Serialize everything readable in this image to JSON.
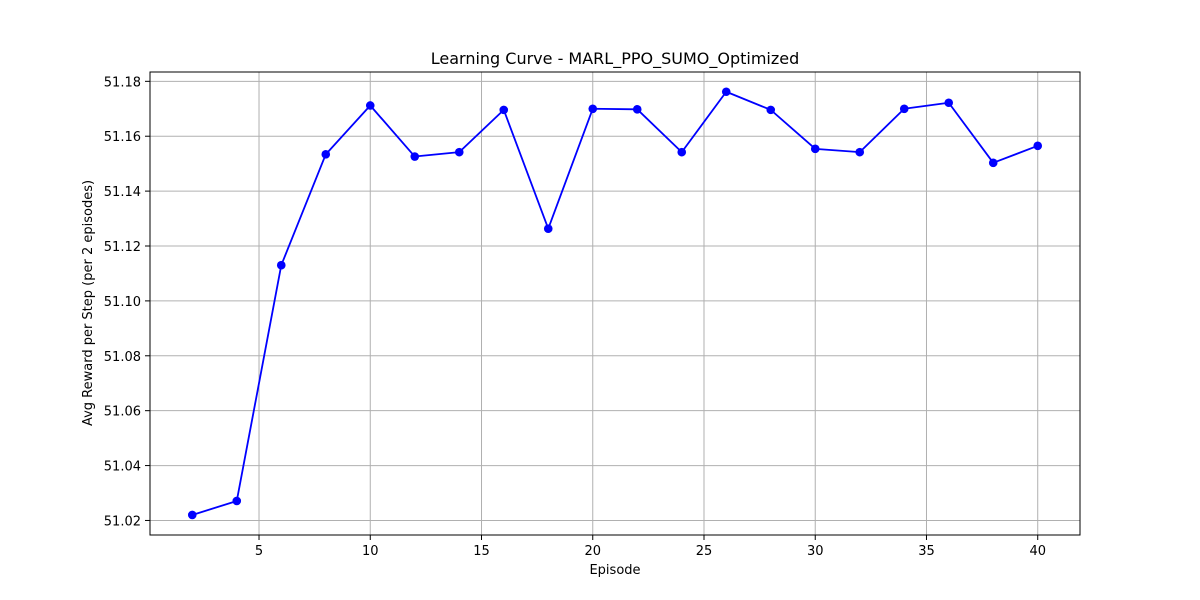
{
  "chart_data": {
    "type": "line",
    "title": "Learning Curve - MARL_PPO_SUMO_Optimized",
    "xlabel": "Episode",
    "ylabel": "Avg Reward per Step (per 2 episodes)",
    "xlim": [
      0.1,
      41.9
    ],
    "ylim": [
      51.0147,
      51.1834
    ],
    "x_ticks": [
      5,
      10,
      15,
      20,
      25,
      30,
      35,
      40
    ],
    "x_tick_labels": [
      "5",
      "10",
      "15",
      "20",
      "25",
      "30",
      "35",
      "40"
    ],
    "y_ticks": [
      51.02,
      51.04,
      51.06,
      51.08,
      51.1,
      51.12,
      51.14,
      51.16,
      51.18
    ],
    "y_tick_labels": [
      "51.02",
      "51.04",
      "51.06",
      "51.08",
      "51.10",
      "51.12",
      "51.14",
      "51.16",
      "51.18"
    ],
    "grid": true,
    "legend": "none",
    "line_color": "#0000ff",
    "marker": "circle",
    "x": [
      2,
      4,
      6,
      8,
      10,
      12,
      14,
      16,
      18,
      20,
      22,
      24,
      26,
      28,
      30,
      32,
      34,
      36,
      38,
      40
    ],
    "series": [
      {
        "values": [
          51.022,
          51.0271,
          51.113,
          51.1534,
          51.1712,
          51.1526,
          51.1542,
          51.1696,
          51.1263,
          51.17,
          51.1698,
          51.1542,
          51.1762,
          51.1696,
          51.1554,
          51.1542,
          51.17,
          51.1722,
          51.1503,
          51.1565
        ]
      }
    ]
  }
}
